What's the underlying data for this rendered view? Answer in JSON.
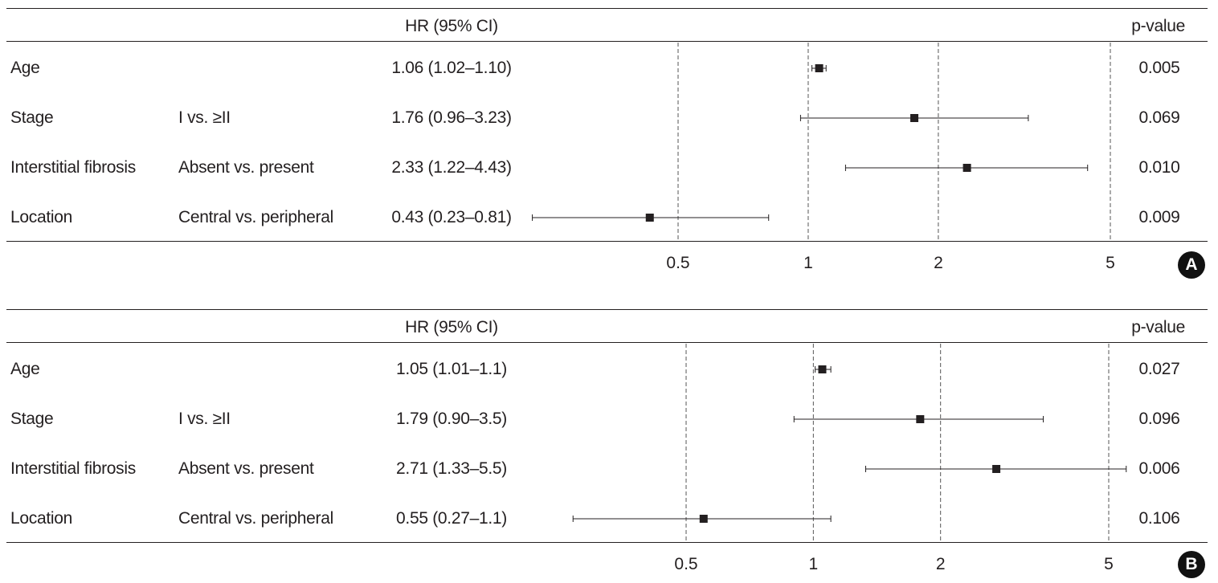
{
  "chart_data": [
    {
      "type": "forest",
      "panel_label": "A",
      "header_estimate": "HR (95% CI)",
      "header_pvalue": "p-value",
      "x_scale": "log",
      "x_ticks": [
        "0.5",
        "1",
        "2",
        "5"
      ],
      "x_tick_values": [
        0.5,
        1,
        2,
        5
      ],
      "xlim": [
        0.3,
        6
      ],
      "rows": [
        {
          "variable": "Age",
          "comparison": "",
          "hr_text": "1.06 (1.02–1.10)",
          "hr": 1.06,
          "lower": 1.02,
          "upper": 1.1,
          "p": "0.005"
        },
        {
          "variable": "Stage",
          "comparison": "I vs. ≥II",
          "hr_text": "1.76 (0.96–3.23)",
          "hr": 1.76,
          "lower": 0.96,
          "upper": 3.23,
          "p": "0.069"
        },
        {
          "variable": "Interstitial fibrosis",
          "comparison": "Absent vs. present",
          "hr_text": "2.33 (1.22–4.43)",
          "hr": 2.33,
          "lower": 1.22,
          "upper": 4.43,
          "p": "0.010"
        },
        {
          "variable": "Location",
          "comparison": "Central vs. peripheral",
          "hr_text": "0.43 (0.23–0.81)",
          "hr": 0.43,
          "lower": 0.23,
          "upper": 0.81,
          "p": "0.009"
        }
      ]
    },
    {
      "type": "forest",
      "panel_label": "B",
      "header_estimate": "HR (95% CI)",
      "header_pvalue": "p-value",
      "x_scale": "log",
      "x_ticks": [
        "0.5",
        "1",
        "2",
        "5"
      ],
      "x_tick_values": [
        0.5,
        1,
        2,
        5
      ],
      "xlim": [
        0.3,
        6
      ],
      "rows": [
        {
          "variable": "Age",
          "comparison": "",
          "hr_text": "1.05 (1.01–1.1)",
          "hr": 1.05,
          "lower": 1.01,
          "upper": 1.1,
          "p": "0.027"
        },
        {
          "variable": "Stage",
          "comparison": "I vs. ≥II",
          "hr_text": "1.79 (0.90–3.5)",
          "hr": 1.79,
          "lower": 0.9,
          "upper": 3.5,
          "p": "0.096"
        },
        {
          "variable": "Interstitial fibrosis",
          "comparison": "Absent vs. present",
          "hr_text": "2.71 (1.33–5.5)",
          "hr": 2.71,
          "lower": 1.33,
          "upper": 5.5,
          "p": "0.006"
        },
        {
          "variable": "Location",
          "comparison": "Central vs. peripheral",
          "hr_text": "0.55 (0.27–1.1)",
          "hr": 0.55,
          "lower": 0.27,
          "upper": 1.1,
          "p": "0.106"
        }
      ]
    }
  ]
}
